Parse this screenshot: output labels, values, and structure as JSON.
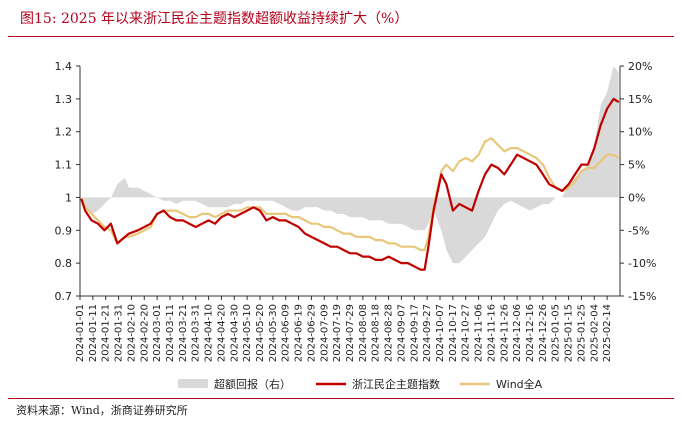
{
  "figure": {
    "title": "图15:   2025 年以来浙江民企主题指数超额收益持续扩大（%）",
    "source": "资料来源：Wind，浙商证券研究所"
  },
  "colors": {
    "excess": "#d9d9d9",
    "zhejiang": "#c00000",
    "wind": "#e8c77a",
    "accent": "#b3001b"
  },
  "chart_data": {
    "type": "line",
    "x_ticks": [
      "2024-01-01",
      "2024-01-11",
      "2024-01-21",
      "2024-01-31",
      "2024-02-10",
      "2024-02-20",
      "2024-03-01",
      "2024-03-11",
      "2024-03-21",
      "2024-03-31",
      "2024-04-10",
      "2024-04-20",
      "2024-04-30",
      "2024-05-10",
      "2024-05-20",
      "2024-05-30",
      "2024-06-09",
      "2024-06-19",
      "2024-06-29",
      "2024-07-09",
      "2024-07-19",
      "2024-07-29",
      "2024-08-08",
      "2024-08-18",
      "2024-08-28",
      "2024-09-07",
      "2024-09-17",
      "2024-09-27",
      "2024-10-07",
      "2024-10-17",
      "2024-10-27",
      "2024-11-06",
      "2024-11-16",
      "2024-11-26",
      "2024-12-06",
      "2024-12-16",
      "2024-12-26",
      "2025-01-05",
      "2025-01-15",
      "2025-01-25",
      "2025-02-04",
      "2025-02-14"
    ],
    "y_left": {
      "min": 0.7,
      "max": 1.4,
      "ticks": [
        "0.7",
        "0.8",
        "0.9",
        "1",
        "1.1",
        "1.2",
        "1.3",
        "1.4"
      ]
    },
    "y_right": {
      "min": -15,
      "max": 20,
      "ticks": [
        "-15%",
        "-10%",
        "-5%",
        "0%",
        "5%",
        "10%",
        "15%",
        "20%"
      ]
    },
    "x": [
      "2024-01-02",
      "2024-01-05",
      "2024-01-10",
      "2024-01-15",
      "2024-01-20",
      "2024-01-25",
      "2024-01-30",
      "2024-02-05",
      "2024-02-08",
      "2024-02-15",
      "2024-02-20",
      "2024-02-25",
      "2024-03-01",
      "2024-03-06",
      "2024-03-11",
      "2024-03-16",
      "2024-03-21",
      "2024-03-26",
      "2024-03-31",
      "2024-04-05",
      "2024-04-10",
      "2024-04-15",
      "2024-04-20",
      "2024-04-25",
      "2024-04-30",
      "2024-05-05",
      "2024-05-10",
      "2024-05-15",
      "2024-05-20",
      "2024-05-25",
      "2024-05-30",
      "2024-06-04",
      "2024-06-09",
      "2024-06-14",
      "2024-06-19",
      "2024-06-24",
      "2024-06-29",
      "2024-07-04",
      "2024-07-09",
      "2024-07-14",
      "2024-07-19",
      "2024-07-24",
      "2024-07-29",
      "2024-08-03",
      "2024-08-08",
      "2024-08-13",
      "2024-08-18",
      "2024-08-23",
      "2024-08-28",
      "2024-09-02",
      "2024-09-07",
      "2024-09-12",
      "2024-09-17",
      "2024-09-22",
      "2024-09-25",
      "2024-09-28",
      "2024-10-02",
      "2024-10-08",
      "2024-10-12",
      "2024-10-17",
      "2024-10-22",
      "2024-10-27",
      "2024-11-01",
      "2024-11-06",
      "2024-11-11",
      "2024-11-16",
      "2024-11-21",
      "2024-11-26",
      "2024-12-01",
      "2024-12-06",
      "2024-12-11",
      "2024-12-16",
      "2024-12-21",
      "2024-12-26",
      "2024-12-31",
      "2025-01-05",
      "2025-01-10",
      "2025-01-15",
      "2025-01-20",
      "2025-01-25",
      "2025-01-30",
      "2025-02-04",
      "2025-02-09",
      "2025-02-14",
      "2025-02-19",
      "2025-02-23"
    ],
    "series": [
      {
        "name": "超额回报（右）",
        "axis": "right",
        "style": "area",
        "values": [
          0,
          -1.5,
          -2.5,
          -2,
          -1,
          0,
          2,
          3,
          1.5,
          1.5,
          1,
          0.5,
          0,
          -0.5,
          -0.5,
          -1,
          -0.5,
          -0.5,
          -0.5,
          -1,
          -1.5,
          -1.5,
          -1.5,
          -1.5,
          -1,
          -1,
          -0.5,
          -0.5,
          -0.5,
          -0.5,
          -0.5,
          -1,
          -1.5,
          -2,
          -2,
          -1.5,
          -1.5,
          -1.5,
          -2,
          -2,
          -2.5,
          -2.5,
          -3,
          -3,
          -3,
          -3.5,
          -3.5,
          -3.5,
          -4,
          -4,
          -4,
          -4.5,
          -5,
          -5,
          -5,
          -4,
          -2,
          -5,
          -8,
          -10,
          -10,
          -9,
          -8,
          -7,
          -6,
          -4,
          -2,
          -1,
          -0.5,
          -1,
          -1.5,
          -2,
          -1.5,
          -1,
          -1,
          0,
          0,
          2,
          3,
          4,
          5,
          8,
          14,
          16,
          20,
          19
        ]
      },
      {
        "name": "浙江民企主题指数",
        "axis": "left",
        "style": "line",
        "values": [
          0.996,
          0.96,
          0.93,
          0.92,
          0.9,
          0.92,
          0.86,
          0.88,
          0.89,
          0.9,
          0.91,
          0.92,
          0.95,
          0.96,
          0.94,
          0.93,
          0.93,
          0.92,
          0.91,
          0.92,
          0.93,
          0.92,
          0.94,
          0.95,
          0.94,
          0.95,
          0.96,
          0.97,
          0.96,
          0.93,
          0.94,
          0.93,
          0.93,
          0.92,
          0.91,
          0.89,
          0.88,
          0.87,
          0.86,
          0.85,
          0.85,
          0.84,
          0.83,
          0.83,
          0.82,
          0.82,
          0.81,
          0.81,
          0.82,
          0.81,
          0.8,
          0.8,
          0.79,
          0.78,
          0.78,
          0.85,
          0.96,
          1.07,
          1.04,
          0.96,
          0.98,
          0.97,
          0.96,
          1.02,
          1.07,
          1.1,
          1.09,
          1.07,
          1.1,
          1.13,
          1.12,
          1.11,
          1.1,
          1.07,
          1.04,
          1.03,
          1.02,
          1.04,
          1.07,
          1.1,
          1.1,
          1.15,
          1.22,
          1.27,
          1.3,
          1.29
        ]
      },
      {
        "name": "Wind全A",
        "axis": "left",
        "style": "line",
        "values": [
          0.996,
          0.97,
          0.95,
          0.93,
          0.91,
          0.9,
          0.86,
          0.88,
          0.88,
          0.89,
          0.9,
          0.91,
          0.95,
          0.96,
          0.96,
          0.96,
          0.95,
          0.94,
          0.94,
          0.95,
          0.95,
          0.94,
          0.95,
          0.96,
          0.96,
          0.96,
          0.97,
          0.97,
          0.97,
          0.95,
          0.95,
          0.95,
          0.95,
          0.94,
          0.94,
          0.93,
          0.92,
          0.92,
          0.91,
          0.91,
          0.9,
          0.89,
          0.89,
          0.88,
          0.88,
          0.88,
          0.87,
          0.87,
          0.86,
          0.86,
          0.85,
          0.85,
          0.85,
          0.84,
          0.84,
          0.88,
          0.97,
          1.08,
          1.1,
          1.08,
          1.11,
          1.12,
          1.11,
          1.13,
          1.17,
          1.18,
          1.16,
          1.14,
          1.15,
          1.15,
          1.14,
          1.13,
          1.12,
          1.1,
          1.06,
          1.03,
          1.02,
          1.03,
          1.05,
          1.08,
          1.09,
          1.09,
          1.11,
          1.13,
          1.13,
          1.12
        ]
      }
    ],
    "grid": false,
    "legend": "bottom"
  }
}
